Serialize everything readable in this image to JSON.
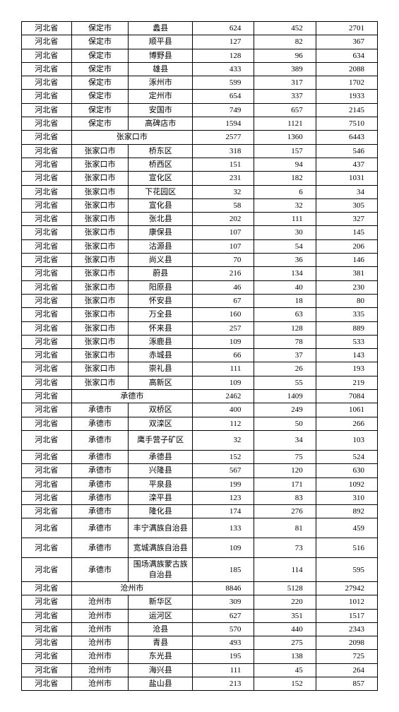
{
  "rows": [
    [
      "河北省",
      "保定市",
      "蠡县",
      "624",
      "452",
      "2701"
    ],
    [
      "河北省",
      "保定市",
      "顺平县",
      "127",
      "82",
      "367"
    ],
    [
      "河北省",
      "保定市",
      "博野县",
      "128",
      "96",
      "634"
    ],
    [
      "河北省",
      "保定市",
      "雄县",
      "433",
      "389",
      "2088"
    ],
    [
      "河北省",
      "保定市",
      "涿州市",
      "599",
      "317",
      "1702"
    ],
    [
      "河北省",
      "保定市",
      "定州市",
      "654",
      "337",
      "1933"
    ],
    [
      "河北省",
      "保定市",
      "安国市",
      "749",
      "657",
      "2145"
    ],
    [
      "河北省",
      "保定市",
      "高碑店市",
      "1594",
      "1121",
      "7510"
    ],
    [
      "河北省",
      "张家口市",
      "",
      "2577",
      "1360",
      "6443"
    ],
    [
      "河北省",
      "张家口市",
      "桥东区",
      "318",
      "157",
      "546"
    ],
    [
      "河北省",
      "张家口市",
      "桥西区",
      "151",
      "94",
      "437"
    ],
    [
      "河北省",
      "张家口市",
      "宣化区",
      "231",
      "182",
      "1031"
    ],
    [
      "河北省",
      "张家口市",
      "下花园区",
      "32",
      "6",
      "34"
    ],
    [
      "河北省",
      "张家口市",
      "宣化县",
      "58",
      "32",
      "305"
    ],
    [
      "河北省",
      "张家口市",
      "张北县",
      "202",
      "111",
      "327"
    ],
    [
      "河北省",
      "张家口市",
      "康保县",
      "107",
      "30",
      "145"
    ],
    [
      "河北省",
      "张家口市",
      "沽源县",
      "107",
      "54",
      "206"
    ],
    [
      "河北省",
      "张家口市",
      "尚义县",
      "70",
      "36",
      "146"
    ],
    [
      "河北省",
      "张家口市",
      "蔚县",
      "216",
      "134",
      "381"
    ],
    [
      "河北省",
      "张家口市",
      "阳原县",
      "46",
      "40",
      "230"
    ],
    [
      "河北省",
      "张家口市",
      "怀安县",
      "67",
      "18",
      "80"
    ],
    [
      "河北省",
      "张家口市",
      "万全县",
      "160",
      "63",
      "335"
    ],
    [
      "河北省",
      "张家口市",
      "怀来县",
      "257",
      "128",
      "889"
    ],
    [
      "河北省",
      "张家口市",
      "涿鹿县",
      "109",
      "78",
      "533"
    ],
    [
      "河北省",
      "张家口市",
      "赤城县",
      "66",
      "37",
      "143"
    ],
    [
      "河北省",
      "张家口市",
      "崇礼县",
      "111",
      "26",
      "193"
    ],
    [
      "河北省",
      "张家口市",
      "高新区",
      "109",
      "55",
      "219"
    ],
    [
      "河北省",
      "承德市",
      "",
      "2462",
      "1409",
      "7084"
    ],
    [
      "河北省",
      "承德市",
      "双桥区",
      "400",
      "249",
      "1061"
    ],
    [
      "河北省",
      "承德市",
      "双滦区",
      "112",
      "50",
      "266"
    ],
    [
      "河北省",
      "承德市",
      "鹰手营子矿区",
      "32",
      "34",
      "103"
    ],
    [
      "河北省",
      "承德市",
      "承德县",
      "152",
      "75",
      "524"
    ],
    [
      "河北省",
      "承德市",
      "兴隆县",
      "567",
      "120",
      "630"
    ],
    [
      "河北省",
      "承德市",
      "平泉县",
      "199",
      "171",
      "1092"
    ],
    [
      "河北省",
      "承德市",
      "滦平县",
      "123",
      "83",
      "310"
    ],
    [
      "河北省",
      "承德市",
      "隆化县",
      "174",
      "276",
      "892"
    ],
    [
      "河北省",
      "承德市",
      "丰宁满族自治县",
      "133",
      "81",
      "459"
    ],
    [
      "河北省",
      "承德市",
      "宽城满族自治县",
      "109",
      "73",
      "516"
    ],
    [
      "河北省",
      "承德市",
      "围场满族蒙古族自治县",
      "185",
      "114",
      "595"
    ],
    [
      "河北省",
      "沧州市",
      "",
      "8846",
      "5128",
      "27942"
    ],
    [
      "河北省",
      "沧州市",
      "新华区",
      "309",
      "220",
      "1012"
    ],
    [
      "河北省",
      "沧州市",
      "运河区",
      "627",
      "351",
      "1517"
    ],
    [
      "河北省",
      "沧州市",
      "沧县",
      "570",
      "440",
      "2343"
    ],
    [
      "河北省",
      "沧州市",
      "青县",
      "493",
      "275",
      "2098"
    ],
    [
      "河北省",
      "沧州市",
      "东光县",
      "195",
      "138",
      "725"
    ],
    [
      "河北省",
      "沧州市",
      "海兴县",
      "111",
      "45",
      "264"
    ],
    [
      "河北省",
      "沧州市",
      "盐山县",
      "213",
      "152",
      "857"
    ]
  ],
  "merge_rows": [
    8,
    27,
    39
  ],
  "tall_rows": [
    30,
    36,
    37,
    38
  ]
}
